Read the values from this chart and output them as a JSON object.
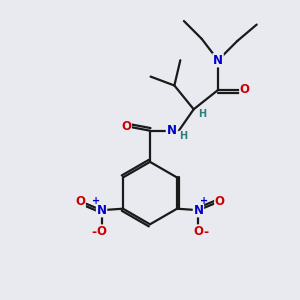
{
  "bg_color": "#e8eaf0",
  "bond_color": "#1a1a1a",
  "bond_width": 1.6,
  "atom_colors": {
    "C": "#1a1a1a",
    "N": "#0000cc",
    "O": "#cc0000",
    "H": "#2d8080"
  },
  "font_size": 8.5,
  "fig_size": [
    3.0,
    3.0
  ],
  "dpi": 100
}
